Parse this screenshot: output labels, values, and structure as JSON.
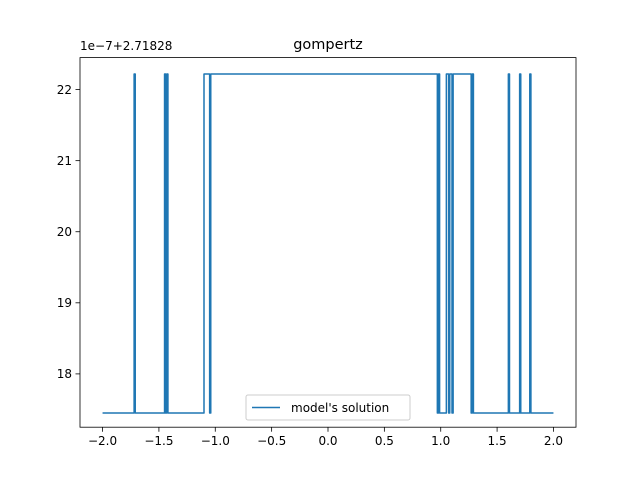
{
  "chart_data": {
    "type": "line",
    "title": "gompertz",
    "xlabel": "",
    "ylabel": "",
    "y_offset_label": "1e−7+2.71828",
    "xlim": [
      -2.2,
      2.2
    ],
    "ylim": [
      17.25,
      22.45
    ],
    "x_ticks": [
      -2.0,
      -1.5,
      -1.0,
      -0.5,
      0.0,
      0.5,
      1.0,
      1.5,
      2.0
    ],
    "x_tick_labels": [
      "−2.0",
      "−1.5",
      "−1.0",
      "−0.5",
      "0.0",
      "0.5",
      "1.0",
      "1.5",
      "2.0"
    ],
    "y_ticks": [
      18,
      19,
      20,
      21,
      22
    ],
    "y_tick_labels": [
      "18",
      "19",
      "20",
      "21",
      "22"
    ],
    "grid": false,
    "legend_position": "bottom-center",
    "color": "#1f77b4",
    "series": [
      {
        "name": "model's solution",
        "x": [
          -2.0,
          -1.72,
          -1.72,
          -1.71,
          -1.71,
          -1.45,
          -1.45,
          -1.44,
          -1.44,
          -1.43,
          -1.43,
          -1.42,
          -1.42,
          -1.41,
          -1.41,
          -1.1,
          -1.1,
          -1.05,
          -1.05,
          -1.04,
          -1.04,
          0.97,
          0.97,
          0.98,
          0.98,
          0.99,
          0.99,
          1.0,
          1.0,
          1.05,
          1.05,
          1.07,
          1.07,
          1.08,
          1.08,
          1.1,
          1.1,
          1.11,
          1.11,
          1.14,
          1.14,
          1.27,
          1.27,
          1.28,
          1.28,
          1.29,
          1.29,
          1.3,
          1.3,
          1.6,
          1.6,
          1.61,
          1.61,
          1.7,
          1.7,
          1.71,
          1.71,
          1.79,
          1.79,
          1.8,
          1.8,
          2.0
        ],
        "y": [
          17.45,
          17.45,
          22.22,
          22.22,
          17.45,
          17.45,
          22.22,
          22.22,
          17.45,
          17.45,
          22.22,
          22.22,
          17.45,
          17.45,
          17.45,
          17.45,
          22.22,
          22.22,
          17.45,
          17.45,
          22.22,
          22.22,
          17.45,
          17.45,
          22.22,
          22.22,
          17.45,
          17.45,
          17.45,
          17.45,
          22.22,
          22.22,
          17.45,
          17.45,
          22.22,
          22.22,
          17.45,
          17.45,
          22.22,
          22.22,
          22.22,
          22.22,
          17.45,
          17.45,
          22.22,
          22.22,
          17.45,
          17.45,
          17.45,
          17.45,
          22.22,
          22.22,
          17.45,
          17.45,
          22.22,
          22.22,
          17.45,
          17.45,
          22.22,
          22.22,
          17.45,
          17.45
        ]
      }
    ]
  }
}
